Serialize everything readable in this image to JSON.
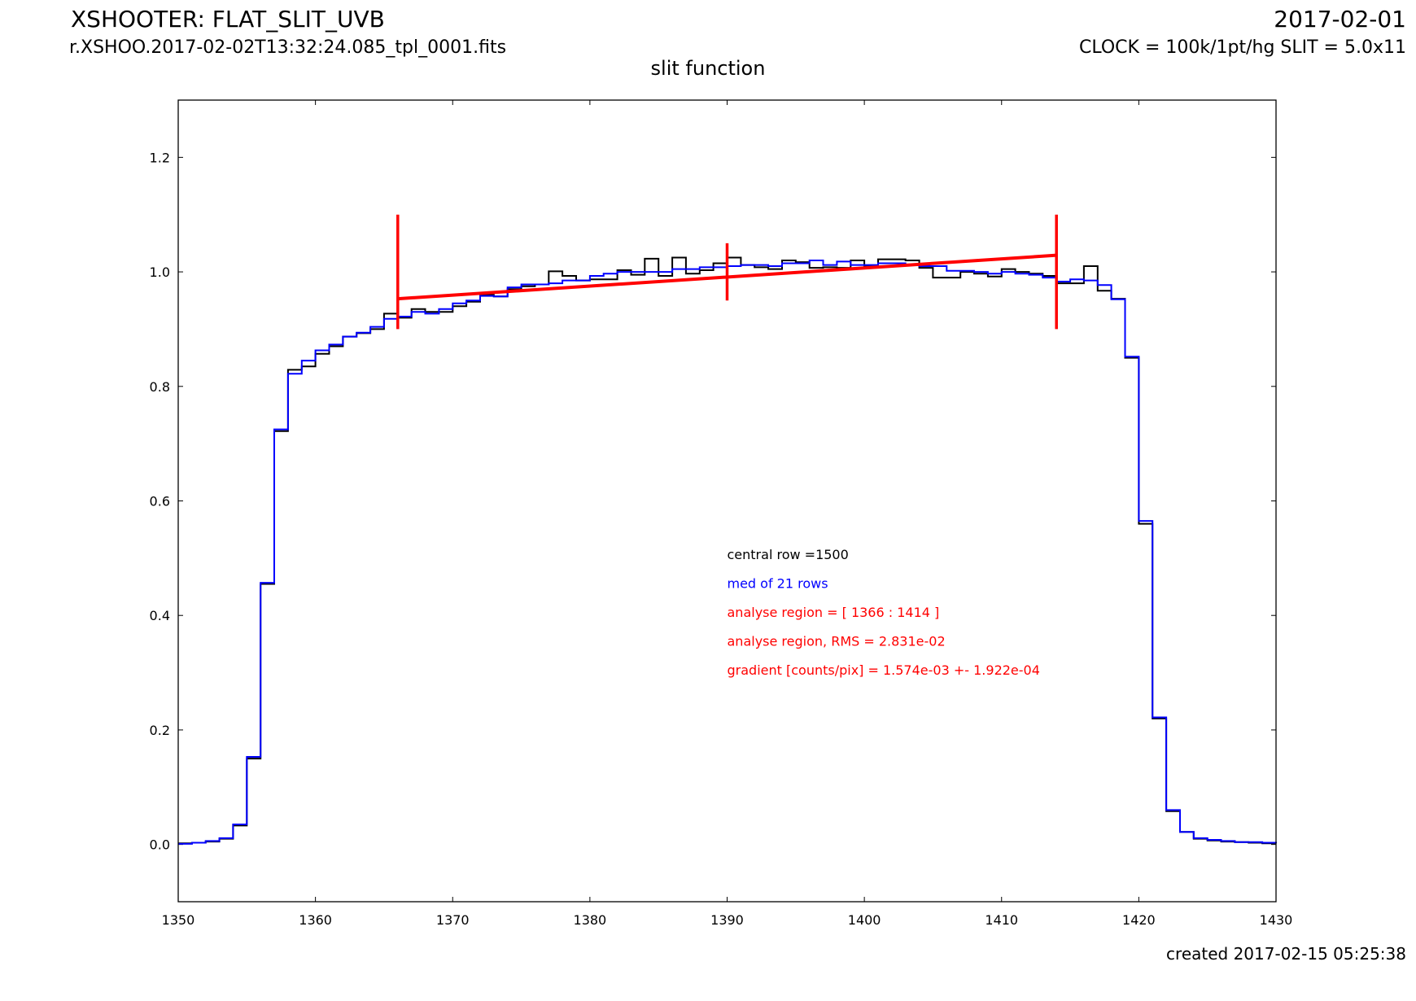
{
  "header": {
    "title": "XSHOOTER: FLAT_SLIT_UVB",
    "filename": "r.XSHOO.2017-02-02T13:32:24.085_tpl_0001.fits",
    "date": "2017-02-01",
    "clock_slit": "CLOCK = 100k/1pt/hg SLIT = 5.0x11",
    "subtitle": "slit function"
  },
  "footer": {
    "created": "created 2017-02-15 05:25:38"
  },
  "chart_data": {
    "type": "line",
    "title": "slit function",
    "xlabel": "",
    "ylabel": "",
    "xlim": [
      1350,
      1430
    ],
    "ylim": [
      -0.1,
      1.3
    ],
    "xticks": [
      1350,
      1360,
      1370,
      1380,
      1390,
      1400,
      1410,
      1420,
      1430
    ],
    "yticks": [
      0.0,
      0.2,
      0.4,
      0.6,
      0.8,
      1.0,
      1.2
    ],
    "ytick_labels": [
      "0.0",
      "0.2",
      "0.4",
      "0.6",
      "0.8",
      "1.0",
      "1.2"
    ],
    "grid": false,
    "x": [
      1350,
      1351,
      1352,
      1353,
      1354,
      1355,
      1356,
      1357,
      1358,
      1359,
      1360,
      1361,
      1362,
      1363,
      1364,
      1365,
      1366,
      1367,
      1368,
      1369,
      1370,
      1371,
      1372,
      1373,
      1374,
      1375,
      1376,
      1377,
      1378,
      1379,
      1380,
      1381,
      1382,
      1383,
      1384,
      1385,
      1386,
      1387,
      1388,
      1389,
      1390,
      1391,
      1392,
      1393,
      1394,
      1395,
      1396,
      1397,
      1398,
      1399,
      1400,
      1401,
      1402,
      1403,
      1404,
      1405,
      1406,
      1407,
      1408,
      1409,
      1410,
      1411,
      1412,
      1413,
      1414,
      1415,
      1416,
      1417,
      1418,
      1419,
      1420,
      1421,
      1422,
      1423,
      1424,
      1425,
      1426,
      1427,
      1428,
      1429,
      1430
    ],
    "series": [
      {
        "name": "central row =1500",
        "color": "#000000",
        "style": "steps",
        "values": [
          0.002,
          0.003,
          0.005,
          0.01,
          0.033,
          0.15,
          0.455,
          0.722,
          0.829,
          0.835,
          0.857,
          0.87,
          0.887,
          0.893,
          0.9,
          0.927,
          0.92,
          0.935,
          0.93,
          0.93,
          0.94,
          0.948,
          0.96,
          0.957,
          0.97,
          0.975,
          0.978,
          1.001,
          0.993,
          0.985,
          0.987,
          0.987,
          1.003,
          0.995,
          1.023,
          0.993,
          1.025,
          0.997,
          1.003,
          1.015,
          1.025,
          1.012,
          1.008,
          1.005,
          1.02,
          1.017,
          1.007,
          1.008,
          1.007,
          1.02,
          1.01,
          1.022,
          1.022,
          1.02,
          1.007,
          0.99,
          0.99,
          1.0,
          0.997,
          0.992,
          1.005,
          1.0,
          0.997,
          0.993,
          0.98,
          0.98,
          1.01,
          0.967,
          0.953,
          0.85,
          0.56,
          0.22,
          0.058,
          0.022,
          0.01,
          0.007,
          0.005,
          0.004,
          0.003,
          0.002,
          0.002
        ]
      },
      {
        "name": "med of 21 rows",
        "color": "#0000ff",
        "style": "steps",
        "values": [
          0.001,
          0.003,
          0.006,
          0.011,
          0.035,
          0.153,
          0.457,
          0.725,
          0.822,
          0.845,
          0.863,
          0.873,
          0.887,
          0.894,
          0.904,
          0.918,
          0.922,
          0.93,
          0.927,
          0.935,
          0.945,
          0.95,
          0.958,
          0.957,
          0.973,
          0.978,
          0.978,
          0.98,
          0.985,
          0.985,
          0.993,
          0.997,
          1.0,
          1.0,
          1.0,
          1.0,
          1.005,
          1.005,
          1.008,
          1.008,
          1.01,
          1.012,
          1.012,
          1.01,
          1.015,
          1.015,
          1.02,
          1.012,
          1.018,
          1.012,
          1.012,
          1.015,
          1.015,
          1.012,
          1.01,
          1.01,
          1.002,
          1.002,
          1.0,
          0.997,
          1.0,
          0.997,
          0.995,
          0.99,
          0.983,
          0.987,
          0.985,
          0.977,
          0.952,
          0.852,
          0.565,
          0.222,
          0.06,
          0.022,
          0.011,
          0.008,
          0.006,
          0.004,
          0.004,
          0.003,
          0.002
        ]
      }
    ],
    "fit_line": {
      "color": "#ff0000",
      "x": [
        1366,
        1414
      ],
      "y": [
        0.953,
        1.029
      ]
    },
    "markers": [
      {
        "x": 1366,
        "y_range": [
          0.9,
          1.1
        ],
        "color": "#ff0000"
      },
      {
        "x": 1390,
        "y_range": [
          0.95,
          1.05
        ],
        "color": "#ff0000"
      },
      {
        "x": 1414,
        "y_range": [
          0.9,
          1.1
        ],
        "color": "#ff0000"
      }
    ],
    "annotations": [
      {
        "text": "central row =1500",
        "color": "#000000"
      },
      {
        "text": "med of 21 rows",
        "color": "#0000ff"
      },
      {
        "text": "analyse region = [ 1366 : 1414 ]",
        "color": "#ff0000"
      },
      {
        "text": "analyse region, RMS = 2.831e-02",
        "color": "#ff0000"
      },
      {
        "text": "gradient [counts/pix] = 1.574e-03 +- 1.922e-04",
        "color": "#ff0000"
      }
    ]
  }
}
